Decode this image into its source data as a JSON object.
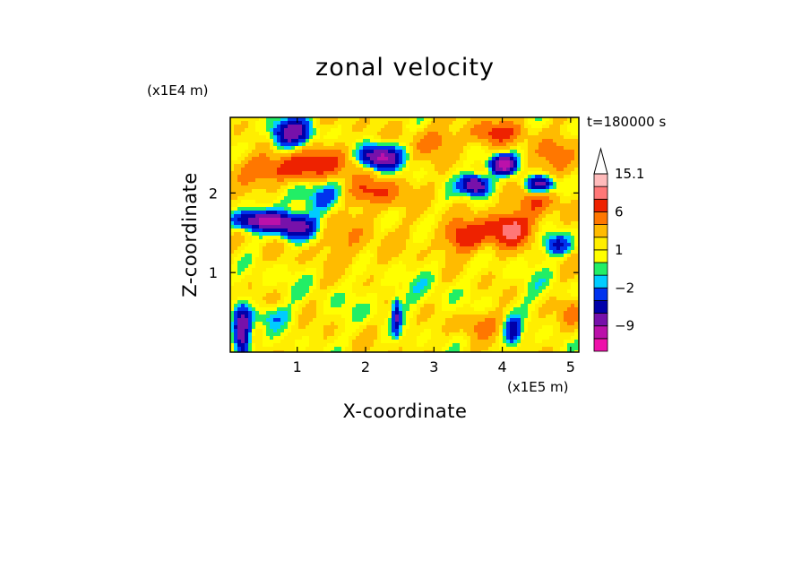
{
  "chart_data": {
    "type": "heatmap",
    "title": "zonal velocity",
    "xlabel": "X-coordinate",
    "ylabel": "Z-coordinate",
    "x_unit_label": "(x1E5 m)",
    "y_unit_label": "(x1E4 m)",
    "time_label": "t=180000 s",
    "xlim": [
      0.02,
      5.12
    ],
    "ylim": [
      0,
      2.95
    ],
    "x_ticks": [
      1,
      2,
      3,
      4,
      5
    ],
    "x_tick_labels": [
      "1",
      "2",
      "3",
      "4",
      "5"
    ],
    "y_ticks": [
      1,
      2
    ],
    "y_tick_labels": [
      "1",
      "2"
    ],
    "colorbar": {
      "levels": [
        -15,
        -12,
        -9,
        -6,
        -4,
        -2,
        -1,
        0,
        1,
        2,
        4,
        6,
        9,
        12,
        15.1
      ],
      "labeled": [
        15.1,
        6,
        1,
        -2,
        -9
      ],
      "label_text": [
        "15.1",
        "6",
        "1",
        "−2",
        "−9"
      ],
      "colors": [
        "#ee11aa",
        "#bb11aa",
        "#7711aa",
        "#0000aa",
        "#0033ee",
        "#00ccff",
        "#22ee66",
        "#ffff00",
        "#ffee00",
        "#ffbb00",
        "#ff7700",
        "#ee2200",
        "#ff7777",
        "#ffbbbb"
      ],
      "extend": "max",
      "extend_color": "#ffffff"
    },
    "features": [
      {
        "x": 0.8,
        "z": 2.3,
        "u": 6,
        "rx": 0.6,
        "rz": 0.18
      },
      {
        "x": 1.5,
        "z": 2.4,
        "u": 4,
        "rx": 0.5,
        "rz": 0.2
      },
      {
        "x": 2.1,
        "z": 2.0,
        "u": 5,
        "rx": 0.45,
        "rz": 0.18
      },
      {
        "x": 2.2,
        "z": 2.45,
        "u": -12,
        "rx": 0.3,
        "rz": 0.15
      },
      {
        "x": 0.5,
        "z": 1.65,
        "u": -10,
        "rx": 0.45,
        "rz": 0.12
      },
      {
        "x": 1.0,
        "z": 1.55,
        "u": -8,
        "rx": 0.3,
        "rz": 0.15
      },
      {
        "x": 1.3,
        "z": 1.95,
        "u": -4,
        "rx": 0.5,
        "rz": 0.25
      },
      {
        "x": 0.9,
        "z": 2.75,
        "u": -9,
        "rx": 0.3,
        "rz": 0.18
      },
      {
        "x": 3.6,
        "z": 2.1,
        "u": -12,
        "rx": 0.2,
        "rz": 0.12
      },
      {
        "x": 4.0,
        "z": 2.35,
        "u": -12,
        "rx": 0.2,
        "rz": 0.12
      },
      {
        "x": 4.55,
        "z": 2.1,
        "u": -12,
        "rx": 0.22,
        "rz": 0.12
      },
      {
        "x": 4.8,
        "z": 1.35,
        "u": -6,
        "rx": 0.2,
        "rz": 0.12
      },
      {
        "x": 3.45,
        "z": 1.45,
        "u": 6,
        "rx": 0.35,
        "rz": 0.2
      },
      {
        "x": 4.1,
        "z": 1.55,
        "u": 9,
        "rx": 0.3,
        "rz": 0.2
      },
      {
        "x": 4.5,
        "z": 1.95,
        "u": 4,
        "rx": 0.35,
        "rz": 0.25
      },
      {
        "x": 4.8,
        "z": 2.45,
        "u": 3,
        "rx": 0.35,
        "rz": 0.25
      },
      {
        "x": 3.0,
        "z": 2.65,
        "u": 3,
        "rx": 0.35,
        "rz": 0.18
      },
      {
        "x": 3.9,
        "z": 2.75,
        "u": 5,
        "rx": 0.4,
        "rz": 0.15
      },
      {
        "x": 1.1,
        "z": 1.0,
        "u": -1,
        "rx": 0.6,
        "rz": 0.25
      },
      {
        "x": 2.0,
        "z": 0.6,
        "u": -1,
        "rx": 0.6,
        "rz": 0.3
      },
      {
        "x": 2.9,
        "z": 0.8,
        "u": -1,
        "rx": 0.5,
        "rz": 0.35
      },
      {
        "x": 4.5,
        "z": 0.75,
        "u": -1,
        "rx": 0.5,
        "rz": 0.4
      },
      {
        "x": 0.6,
        "z": 0.45,
        "u": -3,
        "rx": 0.35,
        "rz": 0.15
      },
      {
        "x": 3.7,
        "z": 0.35,
        "u": 3,
        "rx": 0.3,
        "rz": 0.15
      },
      {
        "x": 0.2,
        "z": 0.2,
        "u": -10,
        "rx": 0.12,
        "rz": 0.35
      },
      {
        "x": 4.15,
        "z": 0.25,
        "u": -6,
        "rx": 0.12,
        "rz": 0.18
      },
      {
        "x": 2.45,
        "z": 0.45,
        "u": -6,
        "rx": 0.06,
        "rz": 0.25
      },
      {
        "x": 5.0,
        "z": 0.5,
        "u": 4,
        "rx": 0.15,
        "rz": 0.2
      },
      {
        "x": 1.6,
        "z": 1.4,
        "u": 2,
        "rx": 0.6,
        "rz": 0.4
      }
    ]
  }
}
